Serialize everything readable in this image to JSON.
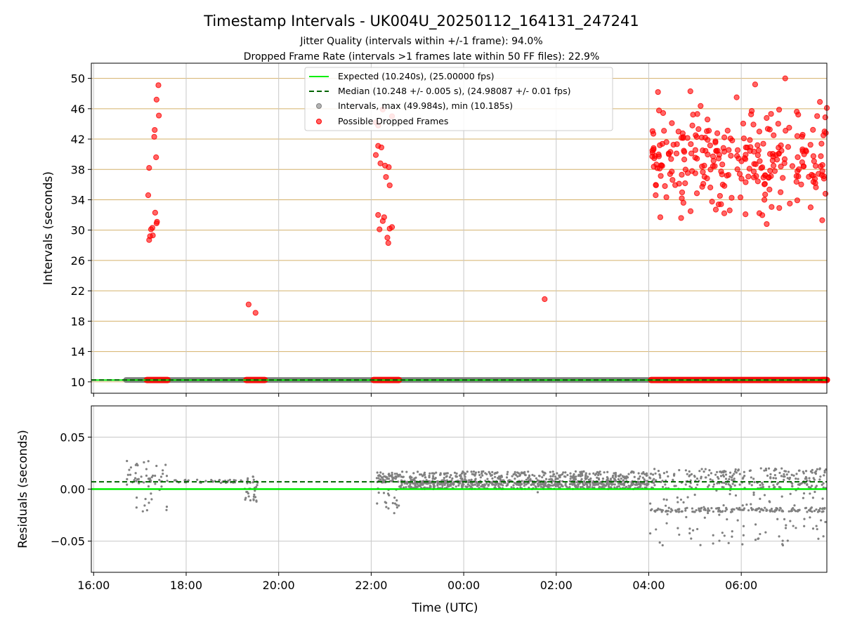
{
  "title": "Timestamp Intervals - UK004U_20250112_164131_247241",
  "subtitle_1": "Jitter Quality (intervals within +/-1 frame): 94.0%",
  "subtitle_2": "Dropped Frame Rate (intervals >1 frames late within 50 FF files): 22.9%",
  "colors": {
    "expected": "#00ee00",
    "median": "#006400",
    "intervals": "#808080",
    "dropped": "#ff0000",
    "hgrid_top": "#d4b06a",
    "grid": "#c8c8c8"
  },
  "chart_data": [
    {
      "type": "scatter",
      "ylabel": "Intervals (seconds)",
      "ylim": [
        8.5,
        52
      ],
      "xlim_hours": [
        15.95,
        31.85
      ],
      "yticks": [
        10,
        14,
        18,
        22,
        26,
        30,
        34,
        38,
        42,
        46,
        50
      ],
      "yticklabels": [
        "10",
        "14",
        "18",
        "22",
        "26",
        "30",
        "34",
        "38",
        "42",
        "46",
        "50"
      ],
      "grid": true,
      "legend_position": "top-center",
      "legend": [
        "Expected (10.240s), (25.00000 fps)",
        "Median (10.248 +/- 0.005 s), (24.98087 +/- 0.01 fps)",
        "Intervals, max (49.984s), min (10.185s)",
        "Possible Dropped Frames"
      ],
      "expected_value": 10.24,
      "median_value": 10.248,
      "interval_baseline_hours": [
        16.7,
        31.85
      ],
      "dropped_baseline_segments_hours": [
        [
          17.15,
          17.6
        ],
        [
          19.3,
          19.7
        ],
        [
          22.05,
          22.6
        ],
        [
          31.75,
          31.95
        ],
        [
          28.05,
          31.85
        ]
      ],
      "dropped_points": [
        [
          17.2,
          38.2
        ],
        [
          17.18,
          34.6
        ],
        [
          17.33,
          32.3
        ],
        [
          17.37,
          31.1
        ],
        [
          17.36,
          30.9
        ],
        [
          17.27,
          30.3
        ],
        [
          17.24,
          30.1
        ],
        [
          17.28,
          29.3
        ],
        [
          17.22,
          29.2
        ],
        [
          17.2,
          28.7
        ],
        [
          17.35,
          39.6
        ],
        [
          17.31,
          42.3
        ],
        [
          17.32,
          43.2
        ],
        [
          17.36,
          47.2
        ],
        [
          17.41,
          45.1
        ],
        [
          17.4,
          49.1
        ],
        [
          19.35,
          20.2
        ],
        [
          19.5,
          19.1
        ],
        [
          22.1,
          39.9
        ],
        [
          22.15,
          41.1
        ],
        [
          22.22,
          40.9
        ],
        [
          22.2,
          38.8
        ],
        [
          22.3,
          38.5
        ],
        [
          22.38,
          38.3
        ],
        [
          22.32,
          37.0
        ],
        [
          22.4,
          35.9
        ],
        [
          22.15,
          32.0
        ],
        [
          22.28,
          31.7
        ],
        [
          22.25,
          31.2
        ],
        [
          22.4,
          30.2
        ],
        [
          22.45,
          30.4
        ],
        [
          22.18,
          30.1
        ],
        [
          22.35,
          29.0
        ],
        [
          22.37,
          28.3
        ],
        [
          22.25,
          45.9
        ],
        [
          22.45,
          45.0
        ],
        [
          22.1,
          44.2
        ],
        [
          22.15,
          43.8
        ],
        [
          25.75,
          20.9
        ],
        [
          28.1,
          42.7
        ],
        [
          28.2,
          48.2
        ],
        [
          28.15,
          34.6
        ],
        [
          28.25,
          31.7
        ],
        [
          28.35,
          35.8
        ],
        [
          28.5,
          44.1
        ],
        [
          28.6,
          40.1
        ],
        [
          28.7,
          31.6
        ],
        [
          28.75,
          33.6
        ],
        [
          28.9,
          48.3
        ],
        [
          29.05,
          45.3
        ],
        [
          29.2,
          38.5
        ],
        [
          29.3,
          43.1
        ],
        [
          29.45,
          32.7
        ],
        [
          29.6,
          36.0
        ],
        [
          29.75,
          32.6
        ],
        [
          29.9,
          47.5
        ],
        [
          30.1,
          40.9
        ],
        [
          30.3,
          49.2
        ],
        [
          30.4,
          39.1
        ],
        [
          30.5,
          34.0
        ],
        [
          30.55,
          30.8
        ],
        [
          30.7,
          42.5
        ],
        [
          30.85,
          35.0
        ],
        [
          30.95,
          50.0
        ],
        [
          31.05,
          33.5
        ],
        [
          31.2,
          45.6
        ],
        [
          31.35,
          38.4
        ],
        [
          31.5,
          33.0
        ],
        [
          31.6,
          36.2
        ],
        [
          31.7,
          46.9
        ],
        [
          31.75,
          31.3
        ],
        [
          31.8,
          43.0
        ],
        [
          31.82,
          34.8
        ],
        [
          31.85,
          46.1
        ]
      ],
      "dropped_cluster": {
        "x_range_hours": [
          28.05,
          31.85
        ],
        "y_range": [
          30.5,
          48.5
        ],
        "count": 240
      }
    },
    {
      "type": "scatter",
      "xlabel": "Time (UTC)",
      "ylabel": "Residuals (seconds)",
      "ylim": [
        -0.08,
        0.08
      ],
      "xlim_hours": [
        15.95,
        31.85
      ],
      "yticks": [
        -0.05,
        0.0,
        0.05
      ],
      "yticklabels": [
        "−0.05",
        "0.00",
        "0.05"
      ],
      "xticks_hours": [
        16,
        18,
        20,
        22,
        24,
        26,
        28,
        30
      ],
      "xticklabels": [
        "16:00",
        "18:00",
        "20:00",
        "22:00",
        "00:00",
        "02:00",
        "04:00",
        "06:00"
      ],
      "grid": true,
      "expected_value": 0.0,
      "median_value": 0.007,
      "segments": [
        {
          "x_range_hours": [
            16.7,
            17.6
          ],
          "y_range": [
            -0.022,
            0.027
          ],
          "density": 60
        },
        {
          "x_range_hours": [
            17.6,
            19.25
          ],
          "y_range": [
            0.006,
            0.009
          ],
          "density": 40
        },
        {
          "x_range_hours": [
            19.25,
            19.55
          ],
          "y_range": [
            -0.012,
            0.012
          ],
          "density": 30
        },
        {
          "x_range_hours": [
            22.1,
            22.6
          ],
          "y_range": [
            -0.029,
            0.017
          ],
          "density": 80
        },
        {
          "x_range_hours": [
            22.6,
            28.0
          ],
          "y_range": [
            0.0,
            0.017
          ],
          "density": 900
        },
        {
          "x_range_hours": [
            28.0,
            31.85
          ],
          "y_range": [
            -0.054,
            0.02
          ],
          "density": 500
        }
      ],
      "notable_points": [
        [
          16.72,
          0.027
        ],
        [
          19.52,
          -0.012
        ],
        [
          25.6,
          -0.003
        ],
        [
          28.3,
          -0.054
        ],
        [
          30.9,
          -0.054
        ]
      ]
    }
  ]
}
